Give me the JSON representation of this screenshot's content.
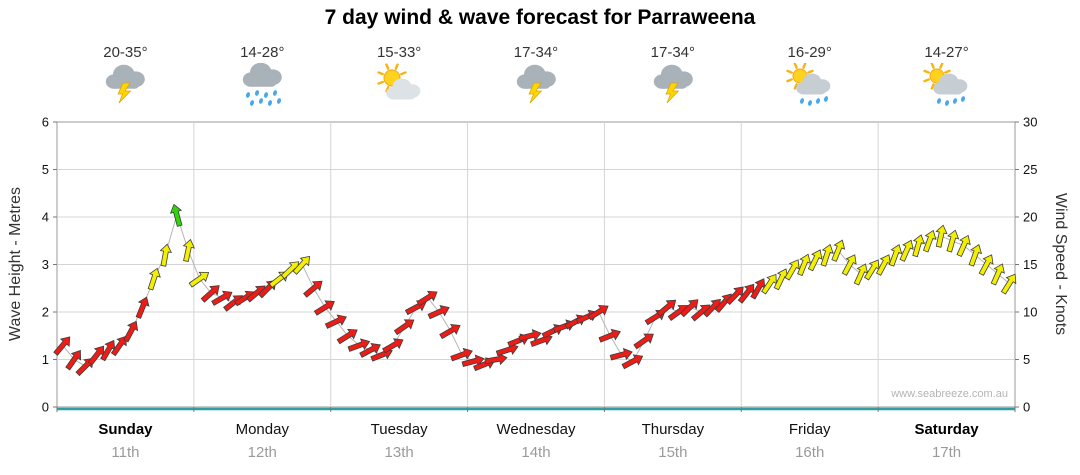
{
  "title": "7 day wind & wave forecast for Parraweena",
  "watermark": "www.seabreeze.com.au",
  "chart_data": {
    "type": "scatter",
    "subtype": "wind-arrow-series",
    "title": "7 day wind & wave forecast for Parraweena",
    "ylabel_left": "Wave Height - Metres",
    "ylabel_right": "Wind Speed - Knots",
    "ylim_left": [
      0,
      6
    ],
    "ylim_right": [
      0,
      30
    ],
    "yticks_left": [
      0,
      1,
      2,
      3,
      4,
      5,
      6
    ],
    "yticks_right": [
      0,
      5,
      10,
      15,
      20,
      25,
      30
    ],
    "grid": "horizontal metre lines + vertical day separators",
    "legend_position": "none",
    "points_per_day": 12,
    "speed_color_thresholds": {
      "red_max": 13,
      "yellow_max": 20
    },
    "colors": {
      "red": "#ed1c16",
      "yellow": "#f3ef00",
      "green": "#31d40b",
      "grid": "#d4d4d4",
      "axis": "#9a9a9a",
      "baseline": "#2f9fa2",
      "trace": "#b5b5b5"
    },
    "days": [
      {
        "name": "Sunday",
        "date": "11th",
        "temp": "20-35°",
        "icon": "thunderstorm",
        "bold": true,
        "wind_knots": [
          6.5,
          5,
          4.3,
          5.5,
          6,
          6.5,
          8,
          10.5,
          13.5,
          16,
          20.2,
          16.5
        ],
        "wind_dir_deg": [
          40,
          35,
          45,
          38,
          30,
          35,
          28,
          22,
          18,
          10,
          -15,
          12
        ]
      },
      {
        "name": "Monday",
        "date": "12th",
        "temp": "14-28°",
        "icon": "rain",
        "bold": false,
        "wind_knots": [
          13.5,
          12,
          11.5,
          11,
          11.5,
          12,
          12.5,
          13.5,
          14.5,
          15,
          12.5,
          10.5
        ],
        "wind_dir_deg": [
          55,
          48,
          60,
          52,
          58,
          50,
          45,
          52,
          46,
          42,
          50,
          58
        ]
      },
      {
        "name": "Tuesday",
        "date": "13th",
        "temp": "15-33°",
        "icon": "partly-cloudy",
        "bold": false,
        "wind_knots": [
          9,
          7.5,
          6.5,
          6,
          5.5,
          6.5,
          8.5,
          10.5,
          11.5,
          10,
          8,
          5.5
        ],
        "wind_dir_deg": [
          65,
          58,
          70,
          62,
          68,
          60,
          55,
          62,
          58,
          66,
          60,
          70
        ]
      },
      {
        "name": "Wednesday",
        "date": "14th",
        "temp": "17-34°",
        "icon": "thunderstorm",
        "bold": false,
        "wind_knots": [
          4.8,
          4.5,
          5,
          6,
          7,
          7.5,
          7,
          8,
          8.5,
          9,
          9.5,
          10
        ],
        "wind_dir_deg": [
          75,
          68,
          80,
          72,
          68,
          76,
          70,
          64,
          70,
          62,
          66,
          58
        ]
      },
      {
        "name": "Thursday",
        "date": "15th",
        "temp": "17-34°",
        "icon": "thunderstorm",
        "bold": false,
        "wind_knots": [
          7.5,
          5.5,
          4.8,
          7,
          9.5,
          10.5,
          10,
          10.5,
          10,
          10.5,
          11,
          11.8
        ],
        "wind_dir_deg": [
          68,
          75,
          62,
          55,
          58,
          50,
          54,
          46,
          50,
          44,
          40,
          44
        ]
      },
      {
        "name": "Friday",
        "date": "16th",
        "temp": "16-29°",
        "icon": "sun-showers",
        "bold": false,
        "wind_knots": [
          12,
          12.5,
          13,
          13.5,
          14.5,
          15,
          15.5,
          16,
          16.5,
          15,
          14,
          14.5
        ],
        "wind_dir_deg": [
          38,
          30,
          34,
          26,
          30,
          22,
          26,
          18,
          22,
          28,
          24,
          32
        ]
      },
      {
        "name": "Saturday",
        "date": "17th",
        "temp": "14-27°",
        "icon": "sun-showers",
        "bold": true,
        "wind_knots": [
          15,
          16,
          16.5,
          17,
          17.5,
          18,
          17.5,
          17,
          16,
          15,
          14,
          13
        ],
        "wind_dir_deg": [
          28,
          20,
          24,
          16,
          20,
          12,
          16,
          24,
          20,
          28,
          24,
          32
        ]
      }
    ]
  }
}
